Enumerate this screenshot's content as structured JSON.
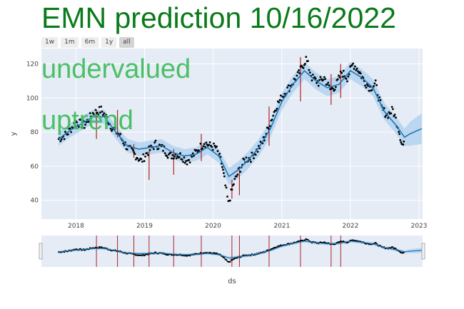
{
  "title": "EMN prediction 10/16/2022",
  "overlay_lines": [
    "undervalued",
    "uptrend"
  ],
  "range_buttons": [
    {
      "label": "1w",
      "active": false
    },
    {
      "label": "1m",
      "active": false
    },
    {
      "label": "6m",
      "active": false
    },
    {
      "label": "1y",
      "active": false
    },
    {
      "label": "all",
      "active": true
    }
  ],
  "colors": {
    "plot_bg": "#e5ecf6",
    "band": "#b3d2ef",
    "forecast_line": "#1f77b4",
    "observed": "#000000",
    "changepoint": "#b22222",
    "title": "#0a7a1a",
    "overlay": "#3dbd5a"
  },
  "chart_data": {
    "type": "line",
    "xlabel": "ds",
    "ylabel": "y",
    "x_range": [
      "2017-07-01",
      "2023-01-20"
    ],
    "y_range": [
      29,
      129
    ],
    "x_ticks": [
      "2018",
      "2019",
      "2020",
      "2021",
      "2022",
      "2023"
    ],
    "y_ticks": [
      40,
      60,
      80,
      100,
      120
    ],
    "grid": true,
    "series": [
      {
        "role": "forecast",
        "points": [
          [
            "2017-10-01",
            76
          ],
          [
            "2017-12-01",
            81
          ],
          [
            "2018-02-01",
            85
          ],
          [
            "2018-04-01",
            89
          ],
          [
            "2018-06-01",
            89
          ],
          [
            "2018-08-01",
            80
          ],
          [
            "2018-10-01",
            72
          ],
          [
            "2018-12-01",
            70
          ],
          [
            "2019-02-01",
            71
          ],
          [
            "2019-04-01",
            72
          ],
          [
            "2019-06-01",
            68
          ],
          [
            "2019-08-01",
            66
          ],
          [
            "2019-10-01",
            67
          ],
          [
            "2019-12-01",
            71
          ],
          [
            "2020-02-01",
            66
          ],
          [
            "2020-03-25",
            54
          ],
          [
            "2020-05-15",
            58
          ],
          [
            "2020-07-01",
            63
          ],
          [
            "2020-09-01",
            71
          ],
          [
            "2020-11-01",
            82
          ],
          [
            "2021-01-01",
            98
          ],
          [
            "2021-03-01",
            108
          ],
          [
            "2021-05-01",
            116
          ],
          [
            "2021-07-01",
            110
          ],
          [
            "2021-09-01",
            106
          ],
          [
            "2021-11-01",
            108
          ],
          [
            "2022-01-01",
            116
          ],
          [
            "2022-03-01",
            112
          ],
          [
            "2022-05-01",
            106
          ],
          [
            "2022-07-01",
            92
          ],
          [
            "2022-09-01",
            84
          ],
          [
            "2022-10-16",
            77
          ],
          [
            "2022-11-15",
            79
          ],
          [
            "2023-01-15",
            82
          ]
        ],
        "band_width": [
          4,
          4,
          4,
          4,
          4,
          4,
          4,
          4,
          4,
          4,
          4,
          4,
          4,
          4,
          4,
          5,
          5,
          5,
          5,
          5,
          5,
          5,
          5,
          5,
          5,
          5,
          5,
          5,
          5,
          5,
          5,
          5,
          7,
          9
        ]
      },
      {
        "role": "observed",
        "points": [
          [
            "2017-10-01",
            76
          ],
          [
            "2017-11-15",
            79
          ],
          [
            "2018-01-01",
            86
          ],
          [
            "2018-02-15",
            84
          ],
          [
            "2018-04-01",
            91
          ],
          [
            "2018-05-15",
            93
          ],
          [
            "2018-06-15",
            88
          ],
          [
            "2018-07-15",
            82
          ],
          [
            "2018-08-15",
            79
          ],
          [
            "2018-10-01",
            71
          ],
          [
            "2018-11-01",
            68
          ],
          [
            "2018-12-15",
            63
          ],
          [
            "2019-01-15",
            68
          ],
          [
            "2019-03-01",
            73
          ],
          [
            "2019-04-15",
            70
          ],
          [
            "2019-05-15",
            66
          ],
          [
            "2019-06-15",
            67
          ],
          [
            "2019-07-15",
            66
          ],
          [
            "2019-08-15",
            63
          ],
          [
            "2019-10-01",
            68
          ],
          [
            "2019-11-15",
            74
          ],
          [
            "2019-12-15",
            72
          ],
          [
            "2020-01-15",
            71
          ],
          [
            "2020-02-15",
            62
          ],
          [
            "2020-03-01",
            52
          ],
          [
            "2020-03-22",
            38
          ],
          [
            "2020-04-20",
            50
          ],
          [
            "2020-05-20",
            58
          ],
          [
            "2020-06-20",
            64
          ],
          [
            "2020-07-20",
            65
          ],
          [
            "2020-08-20",
            69
          ],
          [
            "2020-09-20",
            74
          ],
          [
            "2020-10-20",
            82
          ],
          [
            "2020-12-01",
            95
          ],
          [
            "2021-01-15",
            103
          ],
          [
            "2021-02-15",
            107
          ],
          [
            "2021-04-01",
            114
          ],
          [
            "2021-05-10",
            123
          ],
          [
            "2021-06-10",
            112
          ],
          [
            "2021-07-15",
            109
          ],
          [
            "2021-08-15",
            112
          ],
          [
            "2021-09-15",
            105
          ],
          [
            "2021-10-15",
            107
          ],
          [
            "2021-11-15",
            115
          ],
          [
            "2021-12-15",
            112
          ],
          [
            "2022-01-15",
            120
          ],
          [
            "2022-02-15",
            116
          ],
          [
            "2022-03-15",
            110
          ],
          [
            "2022-04-15",
            106
          ],
          [
            "2022-05-15",
            108
          ],
          [
            "2022-06-15",
            94
          ],
          [
            "2022-07-15",
            90
          ],
          [
            "2022-08-15",
            93
          ],
          [
            "2022-09-15",
            82
          ],
          [
            "2022-10-01",
            73
          ],
          [
            "2022-10-16",
            72
          ]
        ]
      }
    ],
    "changepoints": [
      {
        "x": "2018-04-20",
        "y_low": 76,
        "y_high": 93
      },
      {
        "x": "2018-08-10",
        "y_low": 77,
        "y_high": 93
      },
      {
        "x": "2018-11-05",
        "y_low": 65,
        "y_high": 73
      },
      {
        "x": "2019-01-25",
        "y_low": 52,
        "y_high": 69
      },
      {
        "x": "2019-06-05",
        "y_low": 55,
        "y_high": 70
      },
      {
        "x": "2019-10-30",
        "y_low": 63,
        "y_high": 79
      },
      {
        "x": "2020-04-10",
        "y_low": 41,
        "y_high": 52
      },
      {
        "x": "2020-05-20",
        "y_low": 43,
        "y_high": 58
      },
      {
        "x": "2020-10-25",
        "y_low": 72,
        "y_high": 95
      },
      {
        "x": "2021-04-10",
        "y_low": 98,
        "y_high": 124
      },
      {
        "x": "2021-09-20",
        "y_low": 96,
        "y_high": 114
      },
      {
        "x": "2021-11-10",
        "y_low": 100,
        "y_high": 120
      }
    ]
  }
}
